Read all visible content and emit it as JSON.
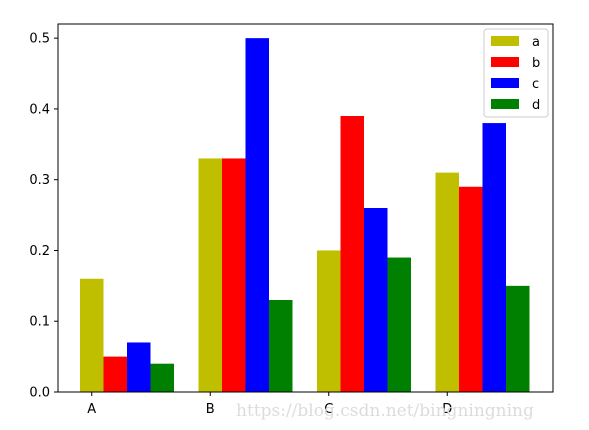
{
  "chart_data": {
    "type": "bar",
    "categories": [
      "A",
      "B",
      "C",
      "D"
    ],
    "series": [
      {
        "name": "a",
        "color": "#bfbf00",
        "values": [
          0.16,
          0.33,
          0.2,
          0.31
        ]
      },
      {
        "name": "b",
        "color": "#ff0000",
        "values": [
          0.05,
          0.33,
          0.39,
          0.29
        ]
      },
      {
        "name": "c",
        "color": "#0000ff",
        "values": [
          0.07,
          0.5,
          0.26,
          0.38
        ]
      },
      {
        "name": "d",
        "color": "#008000",
        "values": [
          0.04,
          0.13,
          0.19,
          0.15
        ]
      }
    ],
    "ylim": [
      0,
      0.52
    ],
    "yticks": [
      "0.0",
      "0.1",
      "0.2",
      "0.3",
      "0.4",
      "0.5"
    ],
    "grid": false,
    "legend_position": "top-right"
  },
  "watermark": "https://blog.csdn.net/bingningning"
}
